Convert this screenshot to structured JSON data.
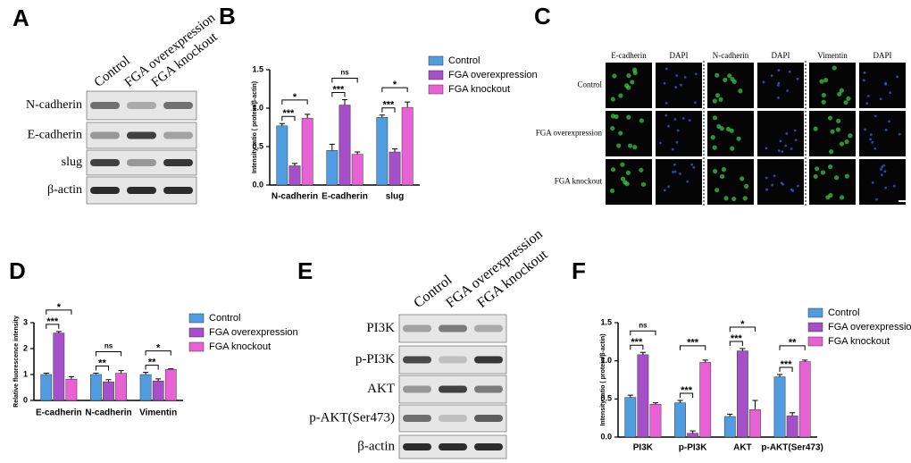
{
  "panel_labels": [
    "A",
    "B",
    "C",
    "D",
    "E",
    "F"
  ],
  "blot_a": {
    "columns": [
      "Control",
      "FGA overexpression",
      "FGA knockout"
    ],
    "rows": [
      "N-cadherin",
      "E-cadherin",
      "slug",
      "β-actin"
    ]
  },
  "if_c": {
    "columns": [
      "E-cadherin",
      "DAPI",
      "N-cadherin",
      "DAPI",
      "Vimentin",
      "DAPI"
    ],
    "rows": [
      "Control",
      "FGA overexpression",
      "FGA knockout"
    ]
  },
  "blot_e": {
    "columns": [
      "Control",
      "FGA overexpression",
      "FGA knockout"
    ],
    "rows": [
      "PI3K",
      "p-PI3K",
      "AKT",
      "p-AKT(Ser473)",
      "β-actin"
    ]
  },
  "chart_data": [
    {
      "type": "bar",
      "y_label": "Intensity ratio ( protein/β-actin)",
      "categories": [
        "N-cadherin",
        "E-cadherin",
        "slug"
      ],
      "series": [
        {
          "name": "Control",
          "color": "#4f9ce0",
          "values": [
            0.77,
            0.45,
            0.88
          ],
          "errors": [
            0.03,
            0.08,
            0.03
          ]
        },
        {
          "name": "FGA overexpression",
          "color": "#a550c8",
          "values": [
            0.25,
            1.04,
            0.43
          ],
          "errors": [
            0.03,
            0.07,
            0.04
          ]
        },
        {
          "name": "FGA knockout",
          "color": "#e862d6",
          "values": [
            0.87,
            0.4,
            1.01
          ],
          "errors": [
            0.05,
            0.03,
            0.07
          ]
        }
      ],
      "significance": [
        [
          "***",
          "*"
        ],
        [
          "***",
          "ns"
        ],
        [
          "***",
          "*"
        ]
      ],
      "ylim": [
        0,
        1.5
      ],
      "yticks": [
        {
          "value": 0,
          "label": "0.0"
        },
        0.5,
        {
          "value": 1,
          "label": "1.0"
        },
        1.5
      ],
      "legend": "right"
    },
    {
      "type": "bar",
      "y_label": "Relative fluorescence intensity",
      "categories": [
        "E-cadherin",
        "N-cadherin",
        "Vimentin"
      ],
      "series": [
        {
          "name": "Control",
          "color": "#4f9ce0",
          "values": [
            1.0,
            1.0,
            1.0
          ],
          "errors": [
            0.05,
            0.05,
            0.08
          ]
        },
        {
          "name": "FGA overexpression",
          "color": "#a550c8",
          "values": [
            2.6,
            0.72,
            0.75
          ],
          "errors": [
            0.06,
            0.08,
            0.08
          ]
        },
        {
          "name": "FGA knockout",
          "color": "#e862d6",
          "values": [
            0.82,
            1.05,
            1.2
          ],
          "errors": [
            0.1,
            0.1,
            0.02
          ]
        }
      ],
      "significance": [
        [
          "***",
          "*"
        ],
        [
          "**",
          "ns"
        ],
        [
          "**",
          "*"
        ]
      ],
      "ylim": [
        0,
        3
      ],
      "yticks": [
        0,
        1,
        2,
        3
      ],
      "legend": "right"
    },
    {
      "type": "bar",
      "y_label": "Intensity ratio ( protein/β-actin)",
      "categories": [
        "PI3K",
        "p-PI3K",
        "AKT",
        "p-AKT(Ser473)"
      ],
      "series": [
        {
          "name": "Control",
          "color": "#4f9ce0",
          "values": [
            0.52,
            0.45,
            0.27,
            0.79
          ],
          "errors": [
            0.03,
            0.03,
            0.03,
            0.03
          ]
        },
        {
          "name": "FGA overexpression",
          "color": "#a550c8",
          "values": [
            1.08,
            0.05,
            1.13,
            0.28
          ],
          "errors": [
            0.03,
            0.03,
            0.03,
            0.04
          ]
        },
        {
          "name": "FGA knockout",
          "color": "#e862d6",
          "values": [
            0.43,
            0.98,
            0.36,
            0.99
          ],
          "errors": [
            0.02,
            0.03,
            0.12,
            0.02
          ]
        }
      ],
      "significance": [
        [
          "***",
          "ns"
        ],
        [
          "***",
          "***"
        ],
        [
          "***",
          "*"
        ],
        [
          "***",
          "**"
        ]
      ],
      "ylim": [
        0,
        1.5
      ],
      "yticks": [
        {
          "value": 0,
          "label": "0.0"
        },
        0.5,
        {
          "value": 1,
          "label": "1.0"
        },
        1.5
      ],
      "legend": "right"
    }
  ]
}
